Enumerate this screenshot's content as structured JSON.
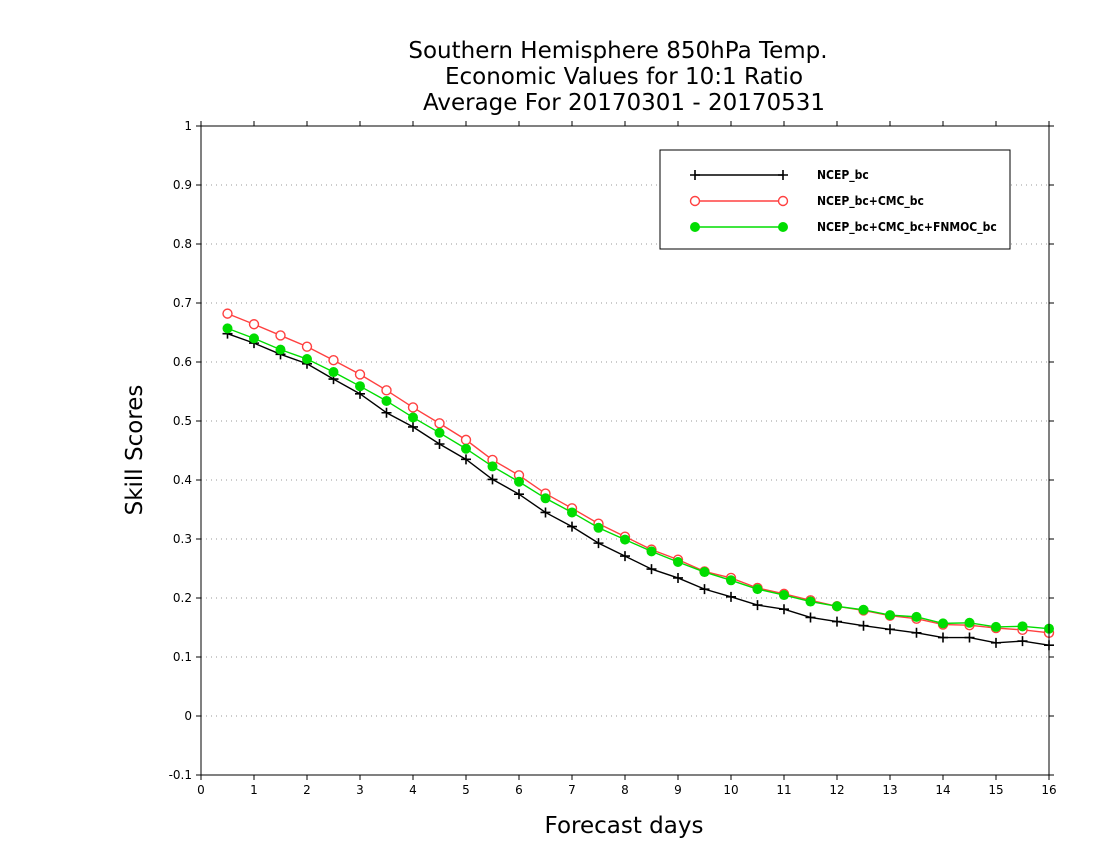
{
  "chart_data": {
    "type": "line",
    "title_lines": [
      "Southern Hemisphere 850hPa Temp.",
      "Economic Values for 10:1 Ratio",
      "Average For 20170301 - 20170531"
    ],
    "xlabel": "Forecast days",
    "ylabel": "Skill Scores",
    "xlim": [
      0,
      16
    ],
    "ylim": [
      -0.1,
      1
    ],
    "x_ticks": [
      "0",
      "1",
      "2",
      "3",
      "4",
      "5",
      "6",
      "7",
      "8",
      "9",
      "10",
      "11",
      "12",
      "13",
      "14",
      "15",
      "16"
    ],
    "y_ticks": [
      "-0.1",
      "0",
      "0.1",
      "0.2",
      "0.3",
      "0.4",
      "0.5",
      "0.6",
      "0.7",
      "0.8",
      "0.9",
      "1"
    ],
    "grid": "horizontal dotted",
    "legend_position": "top-right",
    "x": [
      0.5,
      1,
      1.5,
      2,
      2.5,
      3,
      3.5,
      4,
      4.5,
      5,
      5.5,
      6,
      6.5,
      7,
      7.5,
      8,
      8.5,
      9,
      9.5,
      10,
      10.5,
      11,
      11.5,
      12,
      12.5,
      13,
      13.5,
      14,
      14.5,
      15,
      15.5,
      16
    ],
    "series": [
      {
        "name": "NCEP_bc",
        "color": "#000000",
        "marker": "plus",
        "values": [
          0.648,
          0.632,
          0.613,
          0.597,
          0.571,
          0.546,
          0.514,
          0.49,
          0.461,
          0.435,
          0.401,
          0.376,
          0.345,
          0.321,
          0.293,
          0.271,
          0.249,
          0.234,
          0.215,
          0.202,
          0.188,
          0.181,
          0.167,
          0.16,
          0.153,
          0.147,
          0.141,
          0.133,
          0.133,
          0.124,
          0.127,
          0.12
        ]
      },
      {
        "name": "NCEP_bc+CMC_bc",
        "color": "#ff4040",
        "marker": "open-circle",
        "values": [
          0.682,
          0.664,
          0.645,
          0.626,
          0.603,
          0.579,
          0.552,
          0.523,
          0.496,
          0.468,
          0.434,
          0.408,
          0.377,
          0.352,
          0.326,
          0.304,
          0.282,
          0.265,
          0.245,
          0.234,
          0.217,
          0.207,
          0.196,
          0.186,
          0.179,
          0.17,
          0.165,
          0.155,
          0.154,
          0.149,
          0.146,
          0.141
        ]
      },
      {
        "name": "NCEP_bc+CMC_bc+FNMOC_bc",
        "color": "#00dd00",
        "marker": "filled-circle",
        "values": [
          0.657,
          0.64,
          0.621,
          0.605,
          0.583,
          0.559,
          0.534,
          0.506,
          0.48,
          0.453,
          0.423,
          0.397,
          0.369,
          0.345,
          0.319,
          0.299,
          0.279,
          0.261,
          0.244,
          0.23,
          0.215,
          0.205,
          0.194,
          0.186,
          0.18,
          0.171,
          0.168,
          0.157,
          0.158,
          0.151,
          0.152,
          0.148
        ]
      }
    ]
  }
}
